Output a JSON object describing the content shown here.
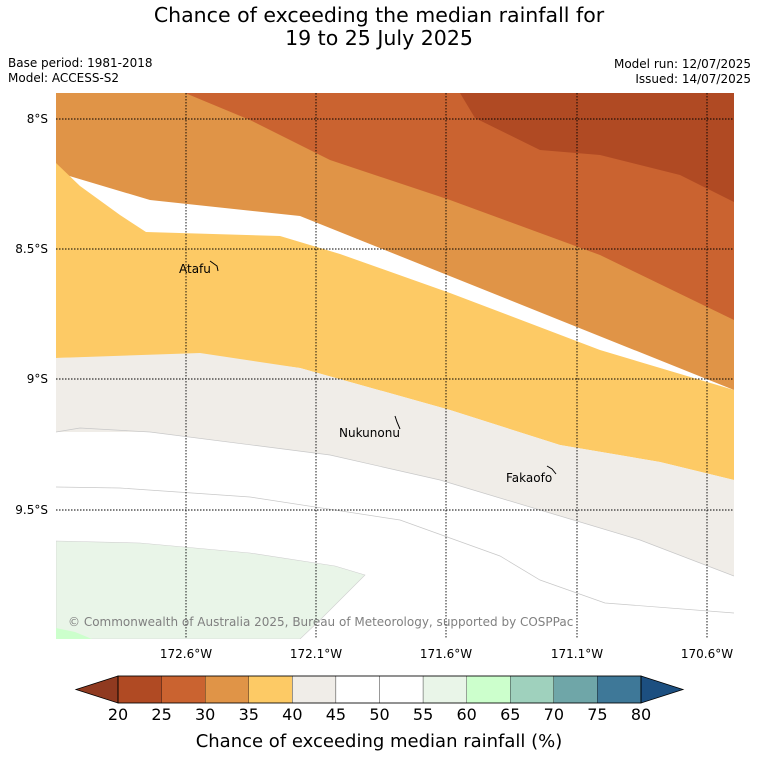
{
  "header": {
    "title_line1": "Chance of exceeding the median rainfall for",
    "title_line2": "19 to 25 July 2025",
    "base_period": "Base period: 1981-2018",
    "model": "Model: ACCESS-S2",
    "model_run": "Model run: 12/07/2025",
    "issued": "Issued: 14/07/2025"
  },
  "map": {
    "latitude_labels": [
      "8°S",
      "8.5°S",
      "9°S",
      "9.5°S"
    ],
    "longitude_labels": [
      "172.6°W",
      "172.1°W",
      "171.6°W",
      "171.1°W",
      "170.6°W"
    ],
    "places": [
      "Atafu",
      "Nukunonu",
      "Fakaofo"
    ],
    "copyright": "© Commonwealth of Australia 2025, Bureau of Meteorology, supported by COSPPac"
  },
  "colorbar": {
    "ticks": [
      "20",
      "25",
      "30",
      "35",
      "40",
      "45",
      "50",
      "55",
      "60",
      "65",
      "70",
      "75",
      "80"
    ],
    "colors": [
      "#b04a23",
      "#ca6330",
      "#e09447",
      "#fdca65",
      "#f0ede8",
      "#ffffff",
      "#ffffff",
      "#e9f5e8",
      "#ccffcc",
      "#9fd1bd",
      "#6fa6a8",
      "#3e7898"
    ],
    "under_color": "#903a20",
    "over_color": "#1c4f80",
    "label": "Chance of exceeding median rainfall (%)"
  }
}
